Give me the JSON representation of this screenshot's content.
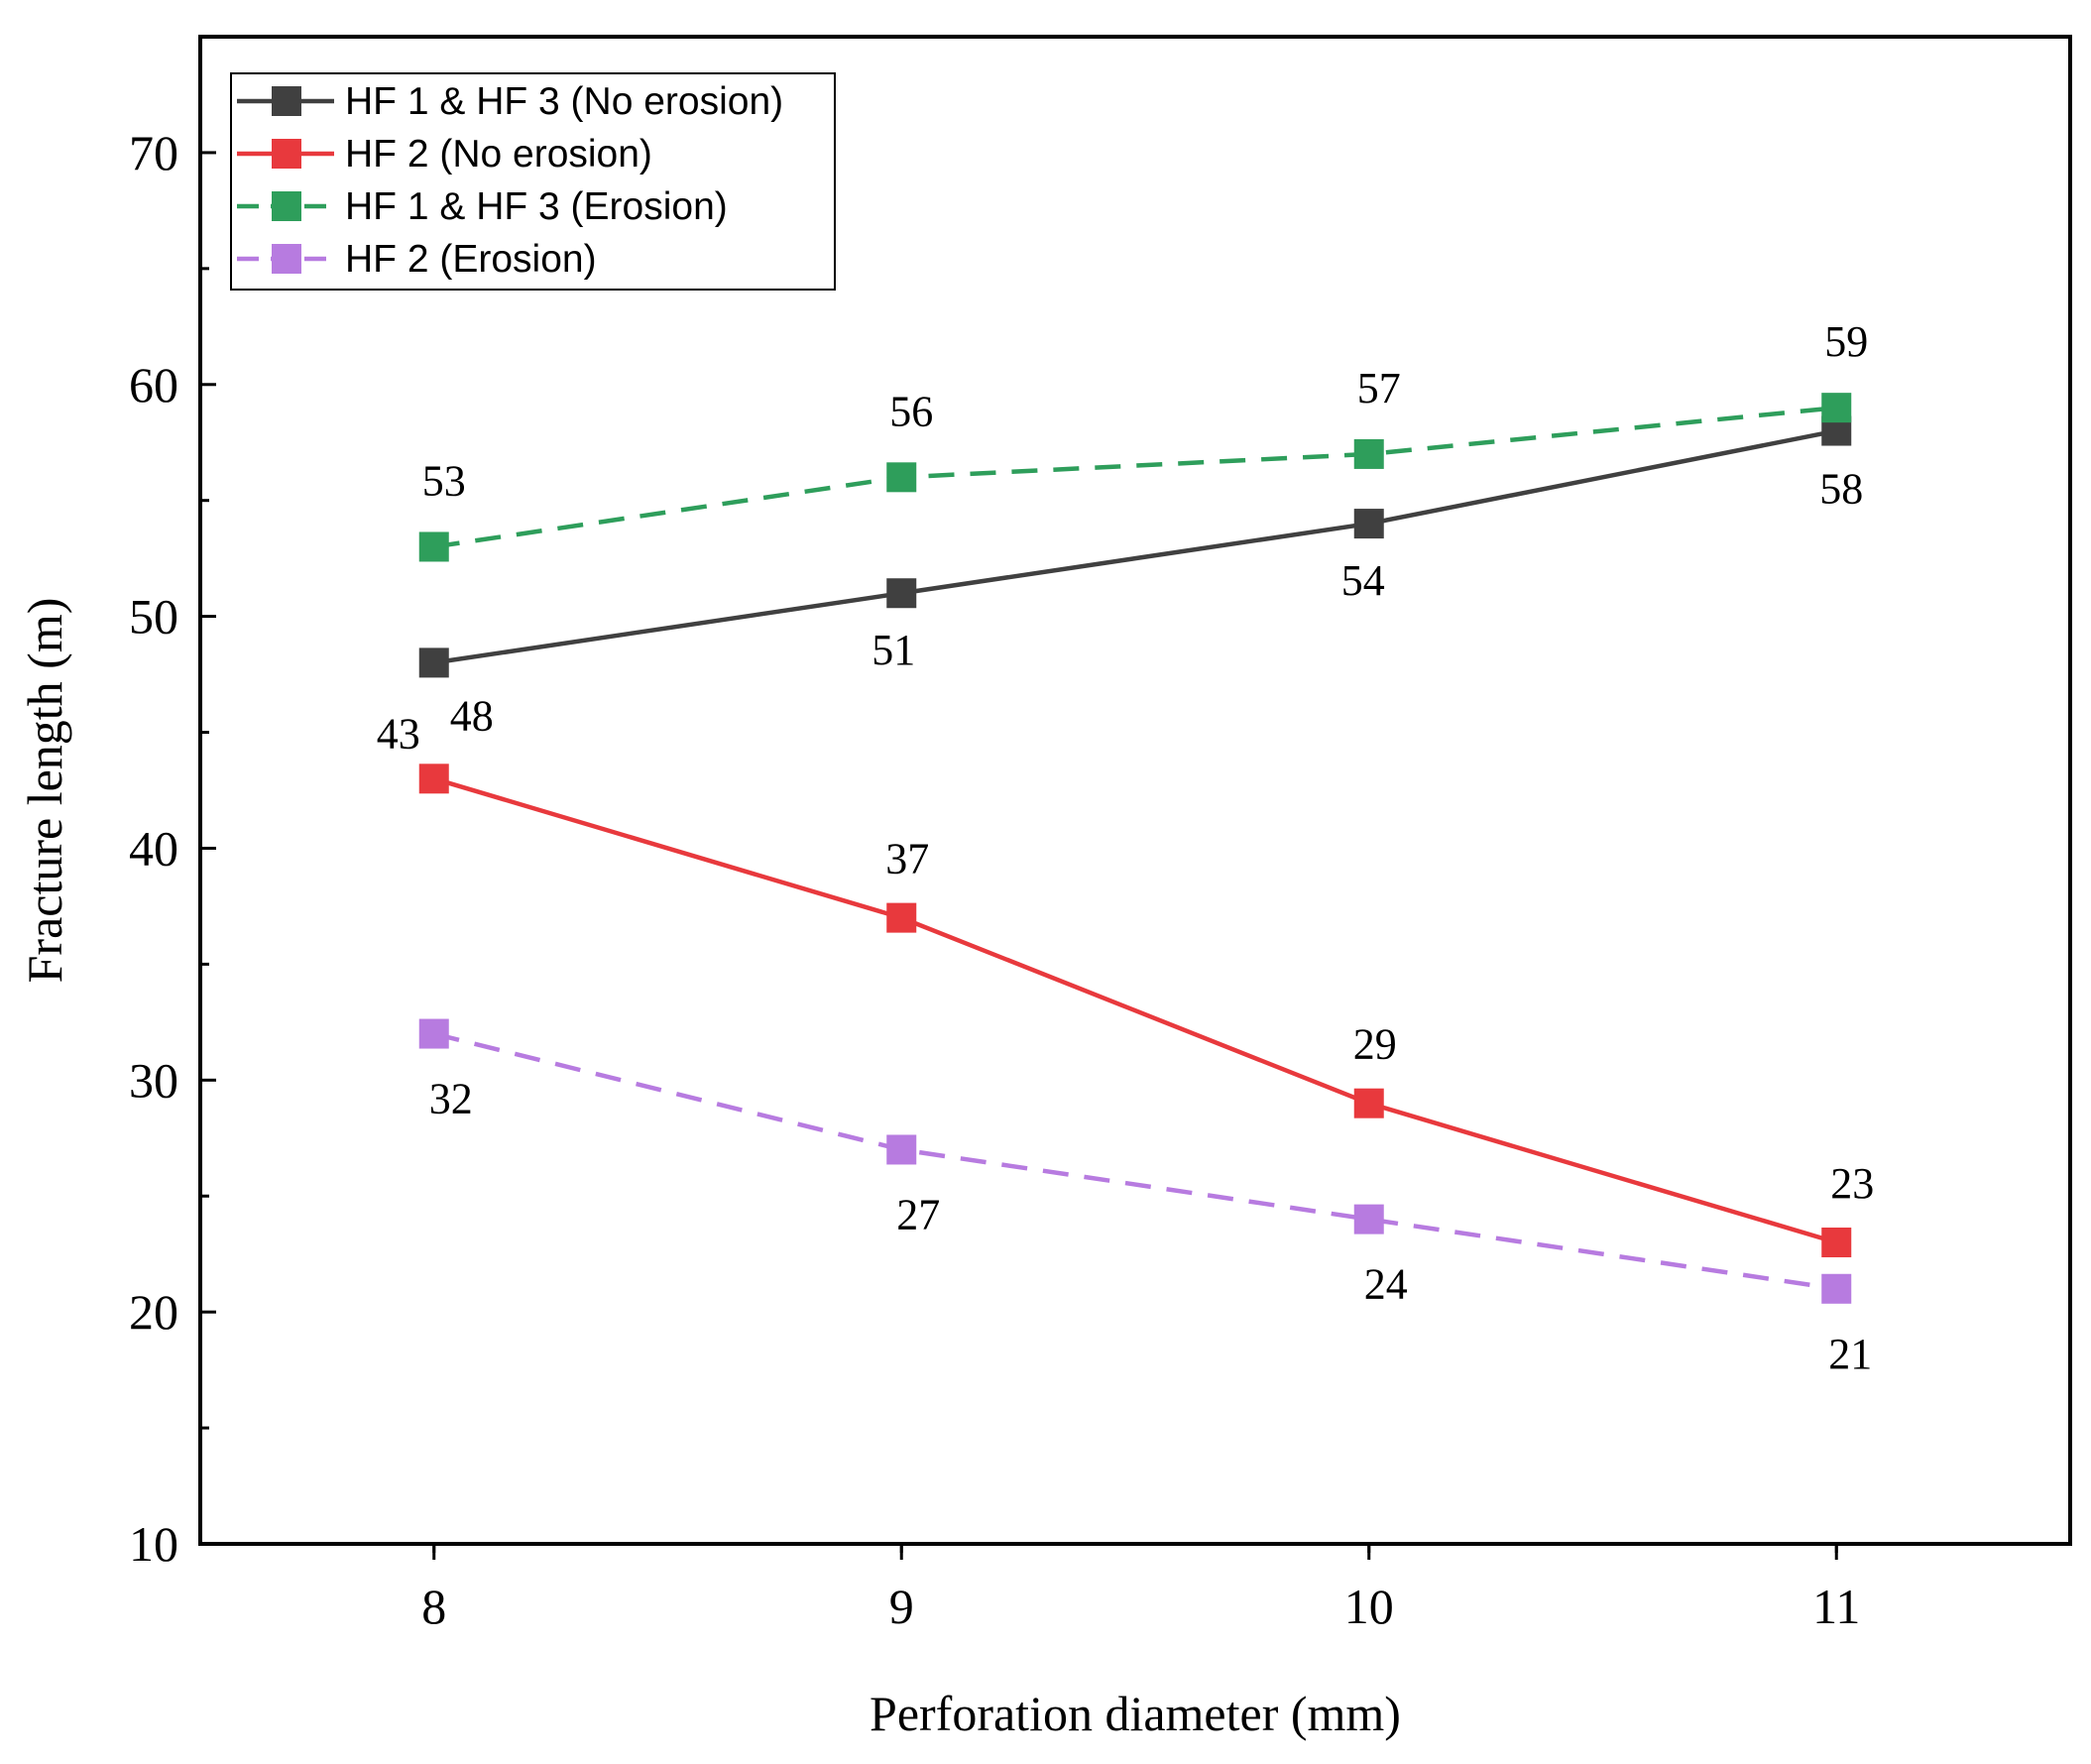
{
  "chart_data": {
    "type": "line",
    "title": "",
    "xlabel": "Perforation diameter (mm)",
    "ylabel": "Fracture length (m)",
    "x": [
      8,
      9,
      10,
      11
    ],
    "x_ticks": [
      "8",
      "9",
      "10",
      "11"
    ],
    "xlim": [
      7.5,
      11.5
    ],
    "ylim": [
      10,
      75
    ],
    "y_ticks": [
      "10",
      "20",
      "30",
      "40",
      "50",
      "60",
      "70"
    ],
    "legend_position": "top-left",
    "grid": false,
    "series": [
      {
        "name": "HF 1 & HF 3 (No erosion)",
        "values": [
          48,
          51,
          54,
          58
        ],
        "labels": [
          "48",
          "51",
          "54",
          "58"
        ],
        "color": "#404040",
        "line_style": "solid",
        "marker": "square"
      },
      {
        "name": "HF 2 (No erosion)",
        "values": [
          43,
          37,
          29,
          23
        ],
        "labels": [
          "43",
          "37",
          "29",
          "23"
        ],
        "color": "#e8393d",
        "line_style": "solid",
        "marker": "square"
      },
      {
        "name": "HF 1 & HF 3 (Erosion)",
        "values": [
          53,
          56,
          57,
          59
        ],
        "labels": [
          "53",
          "56",
          "57",
          "59"
        ],
        "color": "#2e9e5b",
        "line_style": "dashed",
        "marker": "square"
      },
      {
        "name": "HF 2 (Erosion)",
        "values": [
          32,
          27,
          24,
          21
        ],
        "labels": [
          "32",
          "27",
          "24",
          "21"
        ],
        "color": "#b77be0",
        "line_style": "dashed",
        "marker": "square"
      }
    ]
  }
}
